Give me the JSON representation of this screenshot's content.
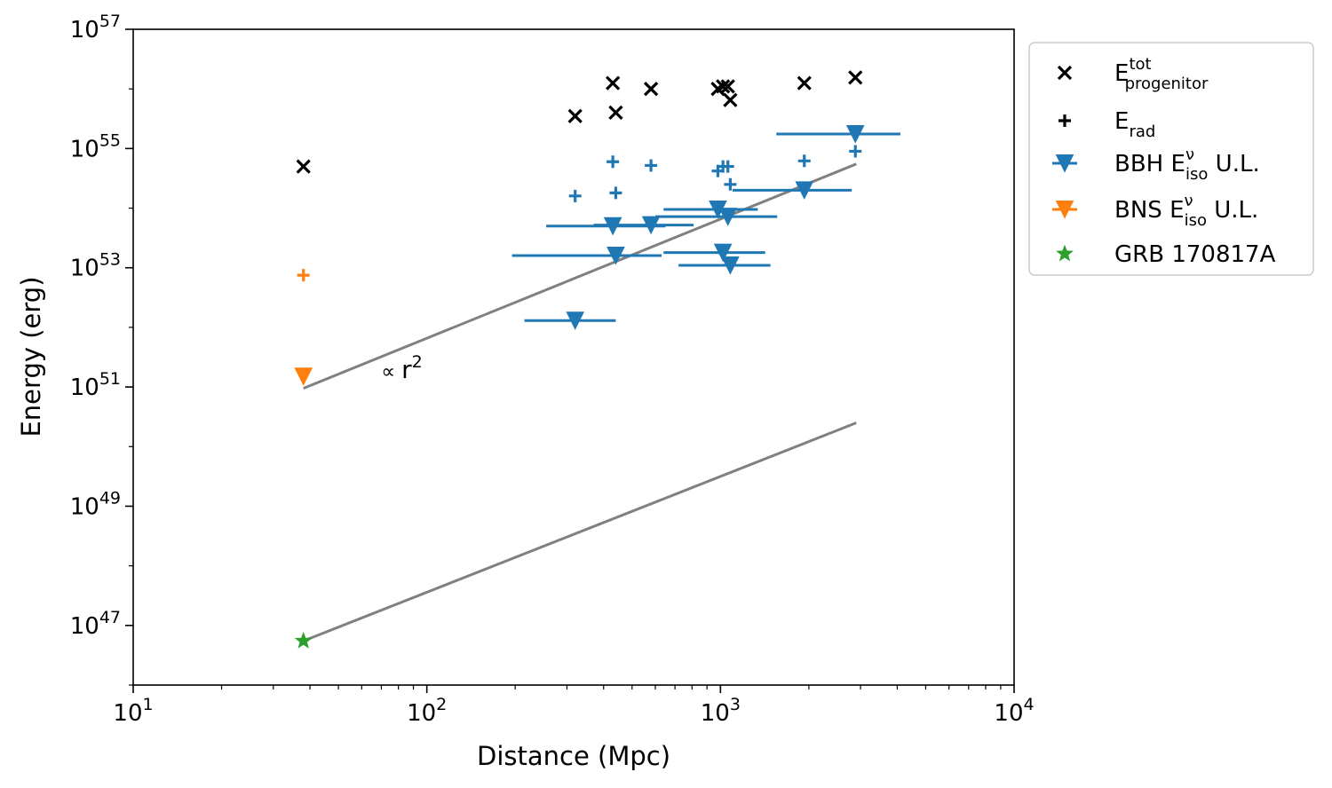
{
  "chart_data": {
    "type": "scatter",
    "xlabel": "Distance (Mpc)",
    "ylabel": "Energy (erg)",
    "xscale": "log",
    "yscale": "log",
    "xlim": [
      10,
      10000
    ],
    "ylim": [
      1e+46,
      1e+57
    ],
    "x_ticks": [
      {
        "value": 10,
        "base": "10",
        "exp": "1"
      },
      {
        "value": 100,
        "base": "10",
        "exp": "2"
      },
      {
        "value": 1000,
        "base": "10",
        "exp": "3"
      },
      {
        "value": 10000,
        "base": "10",
        "exp": "4"
      }
    ],
    "y_ticks": [
      {
        "value": 1e+47,
        "base": "10",
        "exp": "47"
      },
      {
        "value": 1e+49,
        "base": "10",
        "exp": "49"
      },
      {
        "value": 1e+51,
        "base": "10",
        "exp": "51"
      },
      {
        "value": 1e+53,
        "base": "10",
        "exp": "53"
      },
      {
        "value": 1e+55,
        "base": "10",
        "exp": "55"
      },
      {
        "value": 1e+57,
        "base": "10",
        "exp": "57"
      }
    ],
    "annotation": {
      "prefix": "∝ ",
      "base": "r",
      "exp": "2",
      "x": 75,
      "y": 2e+51
    },
    "series": [
      {
        "name": "E_tot_progenitor",
        "label_main": "E",
        "label_sup": "tot",
        "label_sub": "progenitor",
        "marker": "x",
        "color": "#000000",
        "points": [
          {
            "x": 38,
            "y": 5e+54
          },
          {
            "x": 320,
            "y": 3.5e+55
          },
          {
            "x": 430,
            "y": 1.25e+56
          },
          {
            "x": 440,
            "y": 4e+55
          },
          {
            "x": 580,
            "y": 1e+56
          },
          {
            "x": 980,
            "y": 1e+56
          },
          {
            "x": 1020,
            "y": 1.1e+56
          },
          {
            "x": 1060,
            "y": 1.1e+56
          },
          {
            "x": 1080,
            "y": 6.5e+55
          },
          {
            "x": 1930,
            "y": 1.25e+56
          },
          {
            "x": 2880,
            "y": 1.55e+56
          }
        ]
      },
      {
        "name": "E_rad",
        "label_main": "E",
        "label_sub": "rad",
        "marker": "+",
        "color": "#000000",
        "points": [
          {
            "x": 320,
            "y": 1.6e+54,
            "color": "#1f77b4"
          },
          {
            "x": 430,
            "y": 6e+54,
            "color": "#1f77b4"
          },
          {
            "x": 440,
            "y": 1.8e+54,
            "color": "#1f77b4"
          },
          {
            "x": 580,
            "y": 5.2e+54,
            "color": "#1f77b4"
          },
          {
            "x": 980,
            "y": 4.2e+54,
            "color": "#1f77b4"
          },
          {
            "x": 1020,
            "y": 5e+54,
            "color": "#1f77b4"
          },
          {
            "x": 1060,
            "y": 5e+54,
            "color": "#1f77b4"
          },
          {
            "x": 1080,
            "y": 2.5e+54,
            "color": "#1f77b4"
          },
          {
            "x": 1930,
            "y": 6.2e+54,
            "color": "#1f77b4"
          },
          {
            "x": 2880,
            "y": 9e+54,
            "color": "#1f77b4"
          },
          {
            "x": 38,
            "y": 7.5e+52,
            "color": "#ff7f0e"
          }
        ]
      },
      {
        "name": "BBH_Eiso_UL",
        "label_prefix": "BBH ",
        "label_main": "E",
        "label_sup": "ν",
        "label_sub": "iso",
        "label_suffix": " U.L.",
        "marker": "v",
        "color": "#1f77b4",
        "points": [
          {
            "x": 320,
            "y": 1.3e+52,
            "xerr": [
              215,
              440
            ]
          },
          {
            "x": 430,
            "y": 5e+53,
            "xerr": [
              255,
              650
            ]
          },
          {
            "x": 440,
            "y": 1.6e+53,
            "xerr": [
              195,
              630
            ]
          },
          {
            "x": 580,
            "y": 5.2e+53,
            "xerr": [
              370,
              810
            ]
          },
          {
            "x": 980,
            "y": 9.5e+53,
            "xerr": [
              640,
              1340
            ]
          },
          {
            "x": 1020,
            "y": 1.8e+53,
            "xerr": [
              640,
              1420
            ]
          },
          {
            "x": 1060,
            "y": 7.2e+53,
            "xerr": [
              600,
              1560
            ]
          },
          {
            "x": 1080,
            "y": 1.1e+53,
            "xerr": [
              720,
              1480
            ]
          },
          {
            "x": 1930,
            "y": 2e+54,
            "xerr": [
              1100,
              2800
            ]
          },
          {
            "x": 2880,
            "y": 1.75e+55,
            "xerr": [
              1550,
              4100
            ]
          }
        ]
      },
      {
        "name": "BNS_Eiso_UL",
        "label_prefix": "BNS ",
        "label_main": "E",
        "label_sup": "ν",
        "label_sub": "iso",
        "label_suffix": " U.L.",
        "marker": "v",
        "color": "#ff7f0e",
        "points": [
          {
            "x": 38,
            "y": 1.5e+51,
            "xerr": [
              37,
              39
            ]
          }
        ]
      },
      {
        "name": "GRB_170817A",
        "label_main": "GRB 170817A",
        "marker": "*",
        "color": "#2ca02c",
        "points": [
          {
            "x": 38,
            "y": 5.5e+46
          }
        ]
      }
    ],
    "lines": [
      {
        "name": "r2-upper",
        "color": "#808080",
        "x": [
          38,
          2900
        ],
        "y": [
          9.5e+50,
          5.5e+54
        ]
      },
      {
        "name": "r2-lower",
        "color": "#808080",
        "x": [
          38,
          2900
        ],
        "y": [
          5.5e+46,
          2.5e+50
        ]
      }
    ],
    "legend_position": "outside upper right"
  }
}
